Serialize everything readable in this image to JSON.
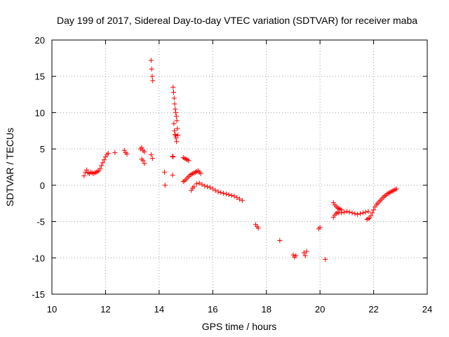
{
  "chart_data": {
    "type": "scatter",
    "title": "Day 199 of 2017, Sidereal Day-to-day VTEC variation (SDTVAR) for receiver maba",
    "xlabel": "GPS time / hours",
    "ylabel": "SDTVAR / TECUs",
    "xlim": [
      10,
      24
    ],
    "ylim": [
      -15,
      20
    ],
    "xticks": [
      10,
      12,
      14,
      16,
      18,
      20,
      22,
      24
    ],
    "yticks": [
      -15,
      -10,
      -5,
      0,
      5,
      10,
      15,
      20
    ],
    "xtick_labels": [
      "10",
      "12",
      "14",
      "16",
      "18",
      "20",
      "22",
      "24"
    ],
    "ytick_labels": [
      "-15",
      "-10",
      "-5",
      "0",
      "5",
      "10",
      "15",
      "20"
    ],
    "grid": true,
    "marker": "+",
    "color": "#ff0000",
    "series": [
      {
        "name": "SDTVAR",
        "x": [
          11.2,
          11.25,
          11.3,
          11.35,
          11.4,
          11.45,
          11.5,
          11.55,
          11.6,
          11.65,
          11.7,
          11.75,
          11.8,
          11.85,
          11.9,
          11.95,
          12.0,
          12.05,
          12.1,
          12.35,
          12.7,
          12.75,
          12.8,
          13.3,
          13.35,
          13.4,
          13.45,
          13.35,
          13.4,
          13.45,
          13.7,
          13.72,
          13.74,
          13.76,
          13.7,
          13.75,
          14.2,
          14.22,
          14.5,
          14.52,
          14.54,
          14.56,
          14.58,
          14.6,
          14.62,
          14.64,
          14.66,
          14.68,
          14.7,
          14.55,
          14.57,
          14.59,
          14.61,
          14.63,
          14.65,
          14.5,
          14.52,
          14.9,
          14.95,
          15.0,
          15.05,
          15.1,
          14.9,
          14.95,
          15.0,
          15.05,
          15.1,
          15.15,
          15.2,
          15.25,
          15.3,
          15.35,
          15.4,
          15.45,
          15.5,
          15.55,
          15.2,
          15.25,
          15.3,
          15.4,
          15.5,
          15.6,
          15.7,
          15.8,
          15.9,
          16.0,
          16.1,
          16.2,
          16.3,
          16.4,
          16.5,
          16.6,
          16.7,
          16.8,
          16.9,
          17.0,
          17.1,
          17.6,
          17.65,
          17.7,
          18.5,
          19.0,
          19.05,
          19.1,
          19.4,
          19.45,
          19.5,
          19.95,
          20.0,
          20.2,
          20.5,
          20.55,
          20.6,
          20.65,
          20.7,
          20.75,
          20.8,
          20.5,
          20.55,
          20.6,
          20.65,
          20.7,
          20.8,
          20.9,
          21.0,
          21.1,
          21.2,
          21.3,
          21.4,
          21.5,
          21.6,
          21.7,
          21.8,
          21.75,
          21.8,
          21.85,
          21.9,
          21.95,
          22.0,
          22.05,
          22.1,
          22.15,
          22.2,
          22.25,
          22.3,
          22.35,
          22.4,
          22.45,
          22.5,
          22.55,
          22.6,
          22.65,
          22.7,
          22.75,
          22.8,
          22.85
        ],
        "y": [
          1.3,
          1.8,
          2.1,
          1.7,
          1.6,
          1.8,
          1.7,
          1.6,
          1.7,
          1.8,
          1.9,
          2.0,
          2.3,
          2.7,
          3.1,
          3.5,
          3.9,
          4.2,
          4.4,
          4.5,
          4.8,
          4.5,
          4.3,
          5.0,
          5.2,
          4.8,
          4.6,
          3.6,
          3.4,
          3.0,
          17.2,
          16.0,
          15.0,
          14.4,
          4.2,
          3.7,
          1.8,
          0.0,
          1.4,
          13.5,
          12.8,
          12.0,
          11.2,
          10.5,
          10.0,
          9.5,
          8.9,
          7.8,
          6.9,
          8.5,
          7.5,
          7.0,
          6.8,
          6.5,
          6.0,
          4.0,
          3.9,
          3.8,
          3.7,
          3.6,
          3.5,
          3.4,
          0.5,
          0.6,
          0.8,
          1.0,
          1.2,
          1.4,
          1.5,
          1.6,
          1.7,
          1.8,
          1.9,
          2.0,
          1.8,
          1.6,
          -0.7,
          -0.4,
          -0.2,
          0.2,
          0.3,
          0.1,
          -0.1,
          -0.2,
          -0.3,
          -0.5,
          -0.7,
          -0.9,
          -1.0,
          -1.1,
          -1.2,
          -1.3,
          -1.4,
          -1.5,
          -1.7,
          -1.9,
          -2.1,
          -5.4,
          -5.7,
          -5.9,
          -7.6,
          -9.6,
          -9.9,
          -9.7,
          -9.3,
          -9.7,
          -9.1,
          -6.0,
          -5.8,
          -10.2,
          -2.4,
          -2.7,
          -2.9,
          -3.1,
          -3.2,
          -3.3,
          -3.4,
          -4.4,
          -4.1,
          -3.9,
          -3.7,
          -3.8,
          -3.8,
          -3.7,
          -3.6,
          -3.7,
          -3.8,
          -3.9,
          -4.0,
          -3.9,
          -3.8,
          -3.7,
          -3.6,
          -4.7,
          -4.6,
          -4.5,
          -4.2,
          -3.8,
          -3.4,
          -3.0,
          -2.7,
          -2.5,
          -2.3,
          -2.1,
          -1.9,
          -1.7,
          -1.5,
          -1.4,
          -1.2,
          -1.1,
          -1.0,
          -0.9,
          -0.8,
          -0.7,
          -0.6,
          -0.5
        ]
      }
    ]
  }
}
